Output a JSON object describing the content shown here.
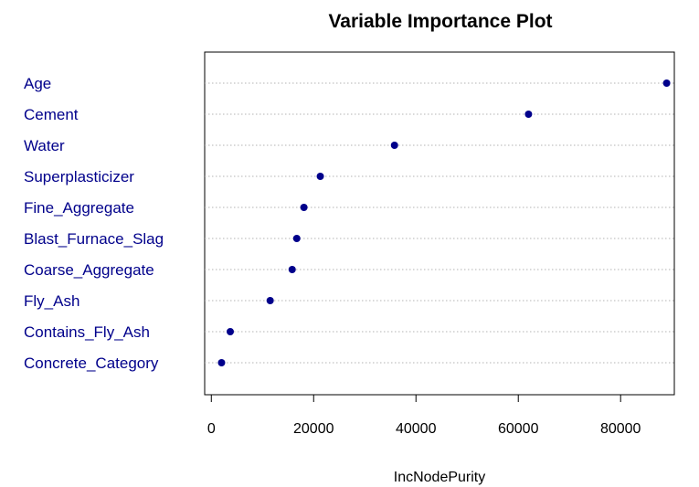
{
  "chart_data": {
    "type": "scatter",
    "title": "Variable Importance Plot",
    "xlabel": "IncNodePurity",
    "ylabel": "",
    "xlim": [
      -1300,
      90500
    ],
    "xticks": [
      0,
      20000,
      40000,
      60000,
      80000
    ],
    "xtick_labels": [
      "0",
      "20000",
      "40000",
      "60000",
      "80000"
    ],
    "grid": "horizontal dotted",
    "categories": [
      "Age",
      "Cement",
      "Water",
      "Superplasticizer",
      "Fine_Aggregate",
      "Blast_Furnace_Slag",
      "Coarse_Aggregate",
      "Fly_Ash",
      "Contains_Fly_Ash",
      "Concrete_Category"
    ],
    "values": [
      89000,
      62000,
      35800,
      21300,
      18100,
      16700,
      15800,
      11500,
      3700,
      2000
    ]
  },
  "colors": {
    "point": "#00008B",
    "label": "#00008B",
    "grid": "#B3B3B3",
    "axis": "#000000"
  }
}
